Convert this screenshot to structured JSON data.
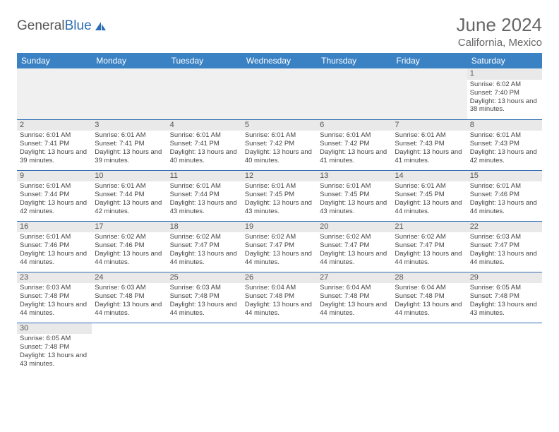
{
  "logo": {
    "part1": "General",
    "part2": "Blue"
  },
  "title": "June 2024",
  "location": "California, Mexico",
  "header_bg": "#3b82c4",
  "border_color": "#2d6db3",
  "daynum_bg": "#e9e9e9",
  "days": [
    "Sunday",
    "Monday",
    "Tuesday",
    "Wednesday",
    "Thursday",
    "Friday",
    "Saturday"
  ],
  "weeks": [
    [
      null,
      null,
      null,
      null,
      null,
      null,
      {
        "n": "1",
        "sr": "6:02 AM",
        "ss": "7:40 PM",
        "dl": "13 hours and 38 minutes."
      }
    ],
    [
      {
        "n": "2",
        "sr": "6:01 AM",
        "ss": "7:41 PM",
        "dl": "13 hours and 39 minutes."
      },
      {
        "n": "3",
        "sr": "6:01 AM",
        "ss": "7:41 PM",
        "dl": "13 hours and 39 minutes."
      },
      {
        "n": "4",
        "sr": "6:01 AM",
        "ss": "7:41 PM",
        "dl": "13 hours and 40 minutes."
      },
      {
        "n": "5",
        "sr": "6:01 AM",
        "ss": "7:42 PM",
        "dl": "13 hours and 40 minutes."
      },
      {
        "n": "6",
        "sr": "6:01 AM",
        "ss": "7:42 PM",
        "dl": "13 hours and 41 minutes."
      },
      {
        "n": "7",
        "sr": "6:01 AM",
        "ss": "7:43 PM",
        "dl": "13 hours and 41 minutes."
      },
      {
        "n": "8",
        "sr": "6:01 AM",
        "ss": "7:43 PM",
        "dl": "13 hours and 42 minutes."
      }
    ],
    [
      {
        "n": "9",
        "sr": "6:01 AM",
        "ss": "7:44 PM",
        "dl": "13 hours and 42 minutes."
      },
      {
        "n": "10",
        "sr": "6:01 AM",
        "ss": "7:44 PM",
        "dl": "13 hours and 42 minutes."
      },
      {
        "n": "11",
        "sr": "6:01 AM",
        "ss": "7:44 PM",
        "dl": "13 hours and 43 minutes."
      },
      {
        "n": "12",
        "sr": "6:01 AM",
        "ss": "7:45 PM",
        "dl": "13 hours and 43 minutes."
      },
      {
        "n": "13",
        "sr": "6:01 AM",
        "ss": "7:45 PM",
        "dl": "13 hours and 43 minutes."
      },
      {
        "n": "14",
        "sr": "6:01 AM",
        "ss": "7:45 PM",
        "dl": "13 hours and 44 minutes."
      },
      {
        "n": "15",
        "sr": "6:01 AM",
        "ss": "7:46 PM",
        "dl": "13 hours and 44 minutes."
      }
    ],
    [
      {
        "n": "16",
        "sr": "6:01 AM",
        "ss": "7:46 PM",
        "dl": "13 hours and 44 minutes."
      },
      {
        "n": "17",
        "sr": "6:02 AM",
        "ss": "7:46 PM",
        "dl": "13 hours and 44 minutes."
      },
      {
        "n": "18",
        "sr": "6:02 AM",
        "ss": "7:47 PM",
        "dl": "13 hours and 44 minutes."
      },
      {
        "n": "19",
        "sr": "6:02 AM",
        "ss": "7:47 PM",
        "dl": "13 hours and 44 minutes."
      },
      {
        "n": "20",
        "sr": "6:02 AM",
        "ss": "7:47 PM",
        "dl": "13 hours and 44 minutes."
      },
      {
        "n": "21",
        "sr": "6:02 AM",
        "ss": "7:47 PM",
        "dl": "13 hours and 44 minutes."
      },
      {
        "n": "22",
        "sr": "6:03 AM",
        "ss": "7:47 PM",
        "dl": "13 hours and 44 minutes."
      }
    ],
    [
      {
        "n": "23",
        "sr": "6:03 AM",
        "ss": "7:48 PM",
        "dl": "13 hours and 44 minutes."
      },
      {
        "n": "24",
        "sr": "6:03 AM",
        "ss": "7:48 PM",
        "dl": "13 hours and 44 minutes."
      },
      {
        "n": "25",
        "sr": "6:03 AM",
        "ss": "7:48 PM",
        "dl": "13 hours and 44 minutes."
      },
      {
        "n": "26",
        "sr": "6:04 AM",
        "ss": "7:48 PM",
        "dl": "13 hours and 44 minutes."
      },
      {
        "n": "27",
        "sr": "6:04 AM",
        "ss": "7:48 PM",
        "dl": "13 hours and 44 minutes."
      },
      {
        "n": "28",
        "sr": "6:04 AM",
        "ss": "7:48 PM",
        "dl": "13 hours and 44 minutes."
      },
      {
        "n": "29",
        "sr": "6:05 AM",
        "ss": "7:48 PM",
        "dl": "13 hours and 43 minutes."
      }
    ],
    [
      {
        "n": "30",
        "sr": "6:05 AM",
        "ss": "7:48 PM",
        "dl": "13 hours and 43 minutes."
      },
      null,
      null,
      null,
      null,
      null,
      null
    ]
  ],
  "labels": {
    "sunrise": "Sunrise:",
    "sunset": "Sunset:",
    "daylight": "Daylight:"
  }
}
